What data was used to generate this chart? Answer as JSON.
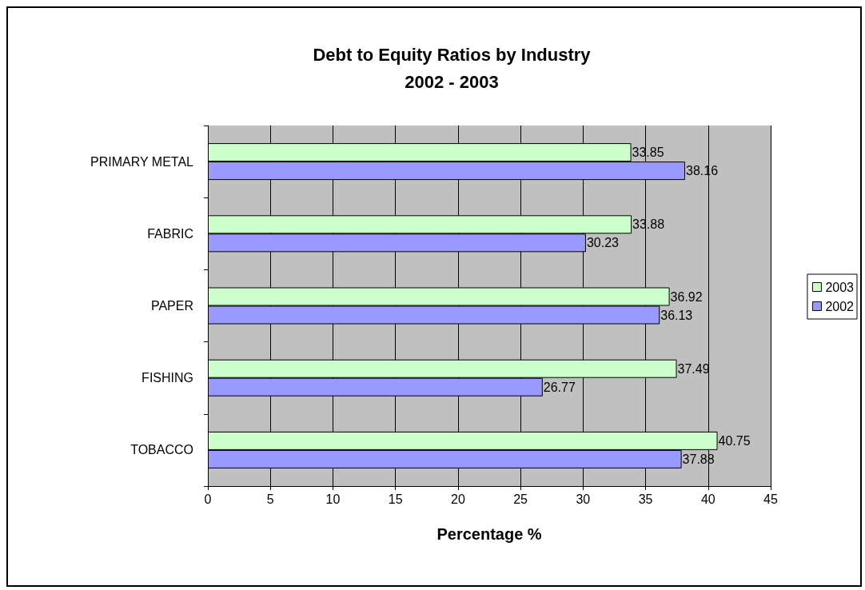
{
  "chart_data": {
    "type": "bar",
    "orientation": "horizontal",
    "title": "Debt to Equity Ratios by Industry",
    "subtitle": "2002 - 2003",
    "xlabel": "Percentage %",
    "categories": [
      "PRIMARY METAL",
      "FABRIC",
      "PAPER",
      "FISHING",
      "TOBACCO"
    ],
    "series": [
      {
        "name": "2003",
        "color": "#ccffcc",
        "values": [
          33.85,
          33.88,
          36.92,
          37.49,
          40.75
        ]
      },
      {
        "name": "2002",
        "color": "#9999ff",
        "values": [
          38.16,
          30.23,
          36.13,
          26.77,
          37.88
        ]
      }
    ],
    "xlim": [
      0,
      45
    ],
    "xticks": [
      0,
      5,
      10,
      15,
      20,
      25,
      30,
      35,
      40,
      45
    ],
    "grid": "x",
    "legend": "right",
    "data_labels": true
  }
}
